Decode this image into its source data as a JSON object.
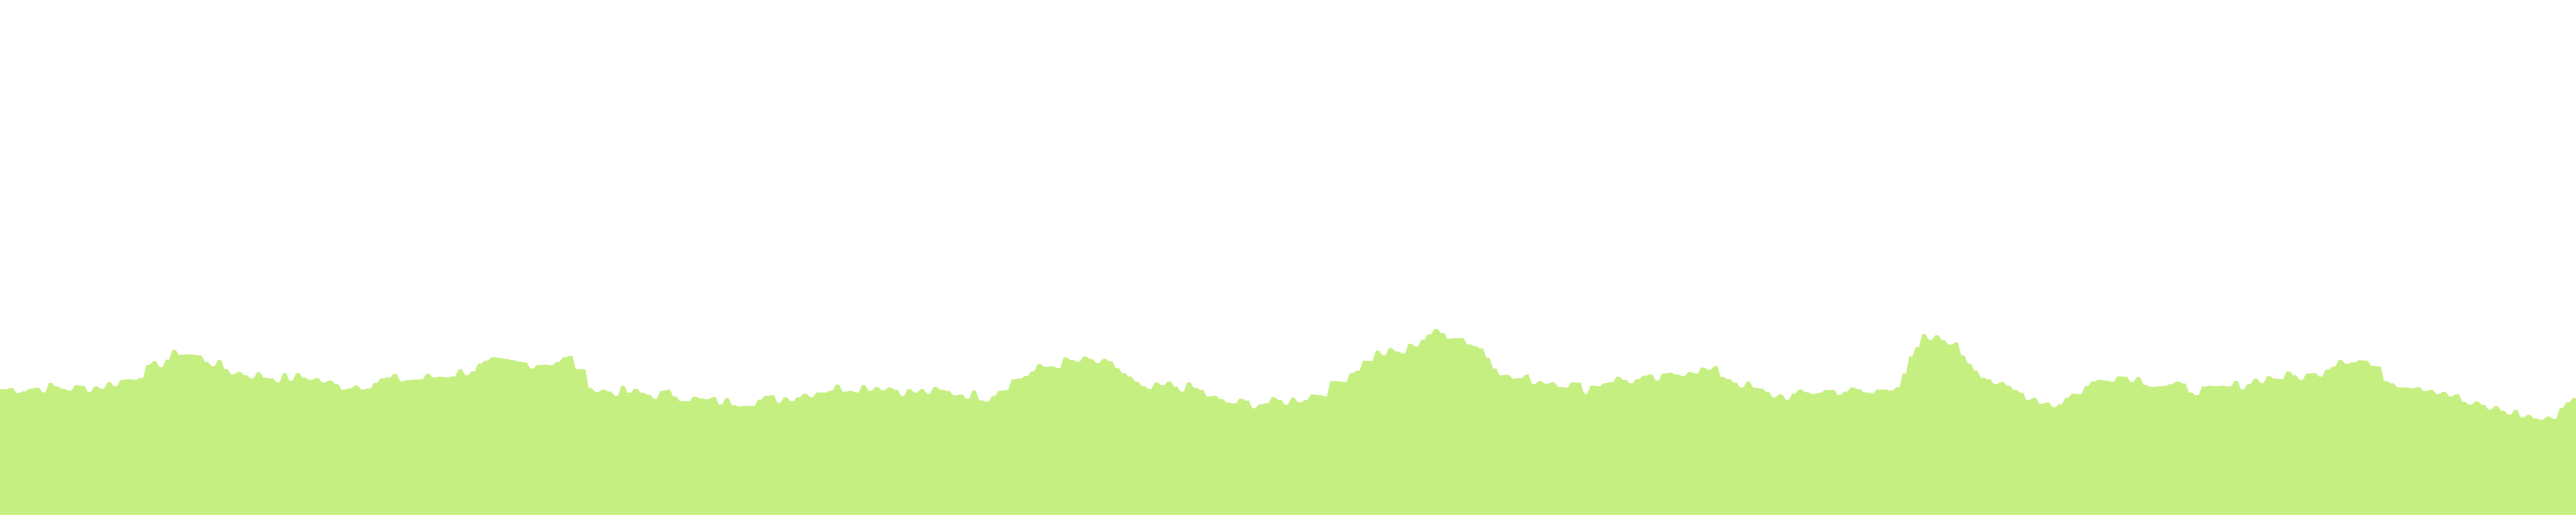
{
  "chart_data": {
    "type": "area",
    "title": "",
    "xlabel": "",
    "ylabel": "",
    "grid": false,
    "legend": "none",
    "xlim": [
      0,
      100
    ],
    "ylim": [
      0,
      100
    ],
    "fill_color": "#c6ef82",
    "series": [
      {
        "values": [
          24.4,
          24.6,
          24.8,
          24.6,
          25.1,
          26.4,
          28.8,
          31.8,
          30.2,
          27.9,
          27.1,
          26.6,
          26.8,
          25.1,
          25.3,
          26.4,
          26.3,
          27.0,
          28.0,
          29.6,
          29.5,
          29.5,
          30.4,
          24.2,
          24.0,
          23.4,
          23.5,
          22.2,
          22.0,
          22.2,
          22.6,
          23.6,
          24.6,
          24.9,
          25.1,
          23.9,
          23.9,
          23.7,
          23.0,
          26.1,
          28.4,
          29.7,
          29.9,
          28.7,
          24.1,
          25.2,
          24.6,
          21.9,
          21.7,
          21.8,
          22.6,
          24.1,
          27.8,
          31.4,
          31.6,
          35.3,
          35.1,
          32.3,
          26.7,
          26.3,
          25.9,
          24.6,
          26.4,
          26.1,
          26.5,
          28.4,
          27.9,
          25.5,
          23.4,
          23.1,
          24.1,
          24.2,
          23.6,
          25.6,
          34.2,
          34.0,
          28.6,
          24.8,
          23.3,
          21.4,
          24.1,
          27.0,
          26.9,
          25.4,
          24.7,
          24.0,
          25.1,
          26.6,
          26.9,
          27.1,
          30.5,
          29.9,
          25.9,
          25.2,
          24.1,
          21.4,
          20.6,
          19.5,
          18.3,
          23.3
        ]
      }
    ]
  }
}
